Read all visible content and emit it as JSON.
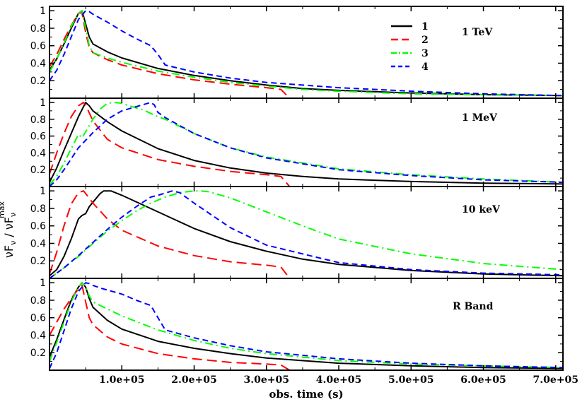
{
  "chart_data": {
    "type": "line",
    "xlabel": "obs. time (s)",
    "ylabel": {
      "num": "νF",
      "num_sub": "ν",
      "sep": " / ",
      "den": "νF",
      "den_sub": "ν",
      "den_sup": "max"
    },
    "xlim": [
      0,
      710000
    ],
    "ylim": [
      0,
      1.05
    ],
    "x_ticks": [
      100000,
      200000,
      300000,
      400000,
      500000,
      600000,
      700000
    ],
    "x_tick_labels": [
      "1.0e+05",
      "2.0e+05",
      "3.0e+05",
      "4.0e+05",
      "5.0e+05",
      "6.0e+05",
      "7.0e+05"
    ],
    "y_ticks": [
      0.2,
      0.4,
      0.6,
      0.8,
      1
    ],
    "y_tick_labels": [
      "0.2",
      "0.4",
      "0.6",
      "0.8",
      "1"
    ],
    "series_styles": [
      {
        "name": "1",
        "color": "#000000",
        "dash": "solid"
      },
      {
        "name": "2",
        "color": "#ff0000",
        "dash": "long-dash"
      },
      {
        "name": "3",
        "color": "#00ff00",
        "dash": "dash-dot"
      },
      {
        "name": "4",
        "color": "#0000ff",
        "dash": "dash"
      }
    ],
    "legend": {
      "position": "top-right",
      "entries": [
        "1",
        "2",
        "3",
        "4"
      ]
    },
    "panels": [
      {
        "label": "1 TeV",
        "series": [
          {
            "name": "1",
            "x": [
              0,
              10000,
              20000,
              30000,
              40000,
              45000,
              50000,
              55000,
              60000,
              80000,
              100000,
              150000,
              200000,
              250000,
              300000,
              350000,
              400000,
              500000,
              600000,
              710000
            ],
            "y": [
              0.32,
              0.45,
              0.62,
              0.8,
              0.97,
              1.0,
              0.85,
              0.7,
              0.62,
              0.53,
              0.46,
              0.34,
              0.26,
              0.2,
              0.15,
              0.11,
              0.09,
              0.06,
              0.04,
              0.03
            ]
          },
          {
            "name": "2",
            "x": [
              0,
              10000,
              20000,
              30000,
              40000,
              45000,
              50000,
              55000,
              60000,
              80000,
              100000,
              150000,
              200000,
              250000,
              300000,
              320000,
              332000
            ],
            "y": [
              0.36,
              0.5,
              0.67,
              0.83,
              0.97,
              0.98,
              0.75,
              0.58,
              0.52,
              0.44,
              0.38,
              0.28,
              0.21,
              0.16,
              0.12,
              0.1,
              0.0
            ]
          },
          {
            "name": "3",
            "x": [
              0,
              10000,
              20000,
              30000,
              40000,
              45000,
              50000,
              55000,
              60000,
              80000,
              100000,
              150000,
              200000,
              250000,
              300000,
              350000,
              400000,
              500000,
              600000,
              710000
            ],
            "y": [
              0.3,
              0.45,
              0.63,
              0.82,
              0.97,
              1.0,
              0.8,
              0.6,
              0.52,
              0.46,
              0.41,
              0.31,
              0.24,
              0.18,
              0.14,
              0.1,
              0.08,
              0.05,
              0.04,
              0.03
            ]
          },
          {
            "name": "4",
            "x": [
              0,
              10000,
              20000,
              30000,
              40000,
              50000,
              55000,
              60000,
              80000,
              100000,
              120000,
              140000,
              150000,
              160000,
              200000,
              250000,
              300000,
              350000,
              400000,
              500000,
              600000,
              710000
            ],
            "y": [
              0.2,
              0.32,
              0.5,
              0.7,
              0.9,
              1.0,
              0.99,
              0.96,
              0.87,
              0.77,
              0.68,
              0.6,
              0.5,
              0.38,
              0.3,
              0.23,
              0.18,
              0.15,
              0.12,
              0.08,
              0.05,
              0.03
            ]
          }
        ]
      },
      {
        "label": "1 MeV",
        "series": [
          {
            "name": "1",
            "x": [
              0,
              10000,
              20000,
              30000,
              40000,
              50000,
              55000,
              60000,
              80000,
              100000,
              150000,
              200000,
              250000,
              300000,
              350000,
              400000,
              500000,
              600000,
              710000
            ],
            "y": [
              0.05,
              0.22,
              0.43,
              0.63,
              0.83,
              1.0,
              0.96,
              0.9,
              0.77,
              0.66,
              0.45,
              0.31,
              0.22,
              0.16,
              0.12,
              0.09,
              0.06,
              0.04,
              0.03
            ]
          },
          {
            "name": "2",
            "x": [
              0,
              10000,
              20000,
              30000,
              40000,
              47000,
              50000,
              60000,
              80000,
              100000,
              150000,
              200000,
              250000,
              300000,
              320000,
              332000
            ],
            "y": [
              0.15,
              0.4,
              0.63,
              0.83,
              0.96,
              1.0,
              0.97,
              0.78,
              0.56,
              0.46,
              0.32,
              0.24,
              0.18,
              0.14,
              0.12,
              0.0
            ]
          },
          {
            "name": "3",
            "x": [
              0,
              10000,
              20000,
              30000,
              40000,
              45000,
              50000,
              60000,
              70000,
              80000,
              90000,
              100000,
              110000,
              130000,
              150000,
              160000,
              200000,
              250000,
              300000,
              400000,
              500000,
              600000,
              710000
            ],
            "y": [
              0.02,
              0.12,
              0.28,
              0.45,
              0.62,
              0.58,
              0.65,
              0.8,
              0.92,
              0.99,
              1.0,
              0.99,
              0.96,
              0.91,
              0.83,
              0.8,
              0.63,
              0.46,
              0.35,
              0.21,
              0.14,
              0.09,
              0.05
            ]
          },
          {
            "name": "4",
            "x": [
              0,
              10000,
              20000,
              30000,
              40000,
              50000,
              60000,
              80000,
              100000,
              120000,
              140000,
              145000,
              150000,
              160000,
              200000,
              250000,
              300000,
              400000,
              500000,
              600000,
              710000
            ],
            "y": [
              0.0,
              0.08,
              0.2,
              0.33,
              0.46,
              0.55,
              0.64,
              0.8,
              0.9,
              0.95,
              1.0,
              0.97,
              0.88,
              0.82,
              0.63,
              0.46,
              0.34,
              0.2,
              0.13,
              0.08,
              0.05
            ]
          }
        ]
      },
      {
        "label": "10 keV",
        "series": [
          {
            "name": "1",
            "x": [
              0,
              10000,
              20000,
              30000,
              40000,
              45000,
              50000,
              55000,
              60000,
              70000,
              75000,
              85000,
              100000,
              150000,
              200000,
              250000,
              300000,
              350000,
              400000,
              500000,
              600000,
              710000
            ],
            "y": [
              0.03,
              0.1,
              0.25,
              0.45,
              0.68,
              0.72,
              0.74,
              0.82,
              0.87,
              0.97,
              1.0,
              1.0,
              0.95,
              0.76,
              0.57,
              0.42,
              0.31,
              0.22,
              0.16,
              0.09,
              0.05,
              0.03
            ]
          },
          {
            "name": "2",
            "x": [
              0,
              10000,
              20000,
              30000,
              40000,
              47000,
              50000,
              60000,
              80000,
              100000,
              150000,
              200000,
              250000,
              300000,
              320000,
              332000
            ],
            "y": [
              0.05,
              0.3,
              0.6,
              0.85,
              0.98,
              1.0,
              0.97,
              0.86,
              0.68,
              0.55,
              0.37,
              0.26,
              0.19,
              0.15,
              0.13,
              0.0
            ]
          },
          {
            "name": "3",
            "x": [
              0,
              20000,
              40000,
              60000,
              80000,
              100000,
              120000,
              140000,
              160000,
              180000,
              200000,
              210000,
              220000,
              250000,
              300000,
              350000,
              400000,
              500000,
              600000,
              710000
            ],
            "y": [
              0.0,
              0.12,
              0.25,
              0.4,
              0.54,
              0.66,
              0.77,
              0.86,
              0.93,
              0.98,
              1.0,
              1.0,
              0.99,
              0.92,
              0.76,
              0.6,
              0.45,
              0.28,
              0.17,
              0.1
            ]
          },
          {
            "name": "4",
            "x": [
              0,
              20000,
              40000,
              60000,
              80000,
              100000,
              120000,
              140000,
              150000,
              170000,
              180000,
              200000,
              250000,
              300000,
              400000,
              500000,
              600000,
              710000
            ],
            "y": [
              0.0,
              0.12,
              0.26,
              0.41,
              0.56,
              0.7,
              0.82,
              0.93,
              0.95,
              1.0,
              0.98,
              0.86,
              0.58,
              0.38,
              0.18,
              0.1,
              0.06,
              0.04
            ]
          }
        ]
      },
      {
        "label": "R Band",
        "series": [
          {
            "name": "1",
            "x": [
              0,
              10000,
              20000,
              30000,
              40000,
              45000,
              50000,
              55000,
              60000,
              80000,
              100000,
              150000,
              200000,
              250000,
              300000,
              400000,
              500000,
              600000,
              710000
            ],
            "y": [
              0.15,
              0.35,
              0.58,
              0.8,
              0.95,
              1.0,
              0.95,
              0.82,
              0.72,
              0.57,
              0.47,
              0.33,
              0.25,
              0.19,
              0.14,
              0.08,
              0.05,
              0.03,
              0.02
            ]
          },
          {
            "name": "2",
            "x": [
              0,
              10000,
              20000,
              30000,
              40000,
              45000,
              50000,
              55000,
              60000,
              80000,
              100000,
              150000,
              200000,
              250000,
              300000,
              320000,
              332000
            ],
            "y": [
              0.4,
              0.55,
              0.7,
              0.82,
              0.93,
              0.97,
              0.78,
              0.6,
              0.52,
              0.38,
              0.3,
              0.19,
              0.13,
              0.09,
              0.07,
              0.06,
              0.0
            ]
          },
          {
            "name": "3",
            "x": [
              0,
              10000,
              20000,
              30000,
              40000,
              45000,
              50000,
              55000,
              60000,
              80000,
              100000,
              150000,
              200000,
              250000,
              300000,
              400000,
              500000,
              600000,
              710000
            ],
            "y": [
              0.1,
              0.32,
              0.55,
              0.78,
              0.95,
              1.0,
              0.95,
              0.85,
              0.78,
              0.7,
              0.62,
              0.46,
              0.34,
              0.25,
              0.19,
              0.11,
              0.07,
              0.05,
              0.03
            ]
          },
          {
            "name": "4",
            "x": [
              0,
              10000,
              20000,
              30000,
              40000,
              50000,
              55000,
              60000,
              70000,
              100000,
              120000,
              140000,
              150000,
              160000,
              200000,
              250000,
              300000,
              400000,
              500000,
              600000,
              710000
            ],
            "y": [
              0.02,
              0.2,
              0.45,
              0.7,
              0.9,
              1.0,
              0.99,
              0.97,
              0.94,
              0.87,
              0.8,
              0.74,
              0.6,
              0.46,
              0.37,
              0.28,
              0.21,
              0.13,
              0.08,
              0.05,
              0.03
            ]
          }
        ]
      }
    ]
  }
}
